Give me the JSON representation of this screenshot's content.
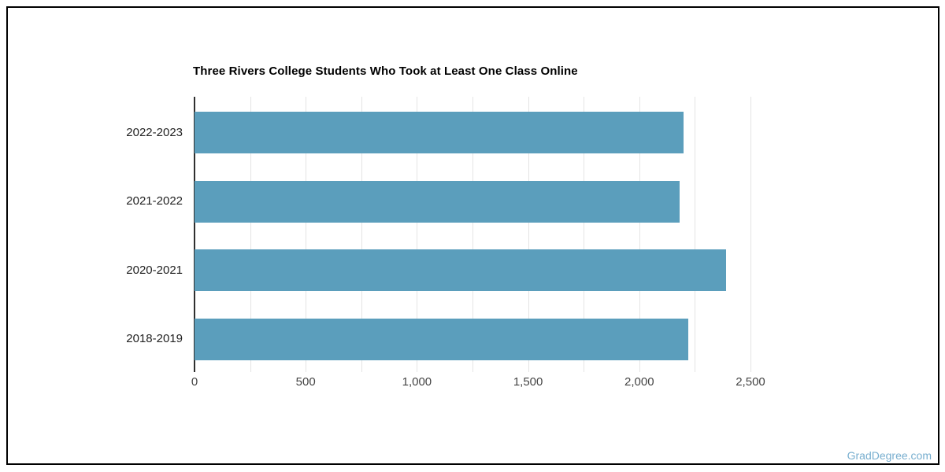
{
  "page": {
    "watermark": "GradDegree.com",
    "watermark_color": "#77aecf",
    "border_color": "#000000",
    "background_color": "#ffffff"
  },
  "chart_data": {
    "type": "bar",
    "orientation": "horizontal",
    "title": "Three Rivers College Students Who Took at Least One Class Online",
    "categories": [
      "2022-2023",
      "2021-2022",
      "2020-2021",
      "2018-2019"
    ],
    "values": [
      2200,
      2180,
      2390,
      2220
    ],
    "xlabel": "",
    "ylabel": "",
    "xlim": [
      0,
      2500
    ],
    "x_ticks": [
      0,
      500,
      1000,
      1500,
      2000,
      2500
    ],
    "x_tick_labels": [
      "0",
      "500",
      "1,000",
      "1,500",
      "2,000",
      "2,500"
    ],
    "minor_grid_step": 250,
    "grid": true,
    "legend": "none",
    "bar_color": "#5b9ebc",
    "grid_color": "#e4e4e4",
    "axis_color": "#2f2f2f",
    "category_label_color": "#222222",
    "tick_label_color": "#444444",
    "title_color": "#000000"
  }
}
